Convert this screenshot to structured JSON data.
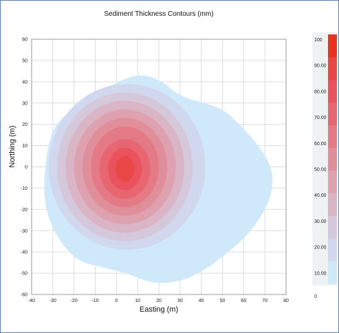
{
  "chart_data": {
    "type": "contour",
    "title": "Sediment Thickness Contours (mm)",
    "xlabel": "Easting (m)",
    "ylabel": "Northing (m)",
    "xlim": [
      -40,
      80
    ],
    "ylim": [
      -60,
      60
    ],
    "x_ticks": [
      "-40",
      "-30",
      "-20",
      "-10",
      "0",
      "10",
      "20",
      "30",
      "40",
      "50",
      "60",
      "70",
      "80"
    ],
    "y_ticks": [
      "60",
      "50",
      "40",
      "30",
      "20",
      "10",
      "0",
      "-10",
      "-20",
      "-30",
      "-40",
      "-50",
      "-60"
    ],
    "grid": true,
    "peak": {
      "x": 4,
      "y": -1,
      "value": 100
    },
    "outer_boundary": [
      [
        -34,
        -1
      ],
      [
        -31,
        16
      ],
      [
        -25,
        24
      ],
      [
        -15,
        31
      ],
      [
        -5,
        37
      ],
      [
        5,
        42
      ],
      [
        13,
        43.5
      ],
      [
        22,
        40
      ],
      [
        30,
        33
      ],
      [
        45,
        29
      ],
      [
        52,
        26
      ],
      [
        62,
        16
      ],
      [
        70,
        6
      ],
      [
        74,
        -3
      ],
      [
        73,
        -15
      ],
      [
        64,
        -30
      ],
      [
        53,
        -40
      ],
      [
        41,
        -49
      ],
      [
        30,
        -54
      ],
      [
        17,
        -55
      ],
      [
        5,
        -50
      ],
      [
        -8,
        -47
      ],
      [
        -19,
        -44
      ],
      [
        -29,
        -32
      ],
      [
        -34,
        -18
      ]
    ],
    "levels": [
      {
        "range": "0-10.00",
        "shape": "outer_boundary"
      },
      {
        "range": "10.00-20.00",
        "cx": 5,
        "cy": 0,
        "rx": 37,
        "ry": 39
      },
      {
        "range": "20.00-30.00",
        "cx": 4,
        "cy": 0,
        "rx": 32,
        "ry": 35
      },
      {
        "range": "30.00-40.00",
        "cx": 4,
        "cy": 0,
        "rx": 28,
        "ry": 31
      },
      {
        "range": "40.00-50.00",
        "cx": 4,
        "cy": 0,
        "rx": 24,
        "ry": 27
      },
      {
        "range": "50.00-60.00",
        "cx": 4,
        "cy": 0,
        "rx": 20,
        "ry": 23
      },
      {
        "range": "60.00-70.00",
        "cx": 4,
        "cy": 0,
        "rx": 16,
        "ry": 19
      },
      {
        "range": "70.00-80.00",
        "cx": 4,
        "cy": -1,
        "rx": 12,
        "ry": 14
      },
      {
        "range": "80.00-90.00",
        "cx": 4,
        "cy": -1,
        "rx": 8,
        "ry": 10
      },
      {
        "range": "90.00-100",
        "cx": 4,
        "cy": -1,
        "rx": 4.5,
        "ry": 6
      }
    ],
    "colorbar": {
      "labels": [
        "100",
        "90.00",
        "80.00",
        "70.00",
        "60.00",
        "50.00",
        "40.00",
        "30.00",
        "20.00",
        "10.00",
        "0"
      ],
      "colors": [
        "#cfe9fb",
        "#d1d8ee",
        "#d5c8db",
        "#dab5c5",
        "#dea1b0",
        "#e18e9b",
        "#e47a86",
        "#e76671",
        "#ea535d",
        "#e94846",
        "#e5341f"
      ]
    }
  }
}
